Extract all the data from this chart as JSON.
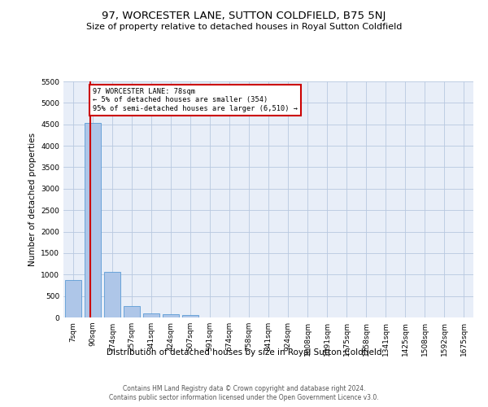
{
  "title": "97, WORCESTER LANE, SUTTON COLDFIELD, B75 5NJ",
  "subtitle": "Size of property relative to detached houses in Royal Sutton Coldfield",
  "xlabel": "Distribution of detached houses by size in Royal Sutton Coldfield",
  "ylabel": "Number of detached properties",
  "footer1": "Contains HM Land Registry data © Crown copyright and database right 2024.",
  "footer2": "Contains public sector information licensed under the Open Government Licence v3.0.",
  "property_label": "97 WORCESTER LANE: 78sqm",
  "annotation_line1": "← 5% of detached houses are smaller (354)",
  "annotation_line2": "95% of semi-detached houses are larger (6,510) →",
  "bar_categories": [
    "7sqm",
    "90sqm",
    "174sqm",
    "257sqm",
    "341sqm",
    "424sqm",
    "507sqm",
    "591sqm",
    "674sqm",
    "758sqm",
    "841sqm",
    "924sqm",
    "1008sqm",
    "1091sqm",
    "1175sqm",
    "1258sqm",
    "1341sqm",
    "1425sqm",
    "1508sqm",
    "1592sqm",
    "1675sqm"
  ],
  "bar_values": [
    870,
    4540,
    1060,
    275,
    90,
    80,
    55,
    0,
    0,
    0,
    0,
    0,
    0,
    0,
    0,
    0,
    0,
    0,
    0,
    0,
    0
  ],
  "bar_color": "#aec6e8",
  "bar_edge_color": "#5b9bd5",
  "property_line_color": "#cc0000",
  "annotation_box_edge_color": "#cc0000",
  "annotation_box_face_color": "#ffffff",
  "bg_color": "#ffffff",
  "plot_bg_color": "#e8eef8",
  "grid_color": "#b8c8e0",
  "ylim": [
    0,
    5500
  ],
  "yticks": [
    0,
    500,
    1000,
    1500,
    2000,
    2500,
    3000,
    3500,
    4000,
    4500,
    5000,
    5500
  ],
  "title_fontsize": 9.5,
  "subtitle_fontsize": 8,
  "ylabel_fontsize": 7.5,
  "xlabel_fontsize": 7.5,
  "tick_fontsize": 6.5,
  "footer_fontsize": 5.5
}
